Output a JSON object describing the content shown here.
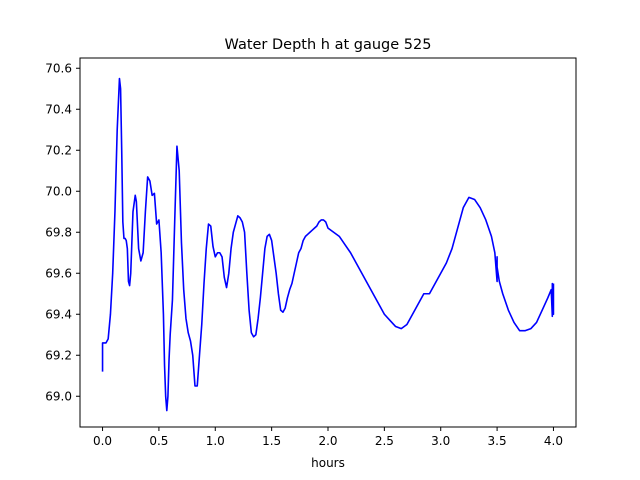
{
  "chart_data": {
    "type": "line",
    "title": "Water Depth h at gauge 525",
    "xlabel": "hours",
    "ylabel": "",
    "xlim": [
      -0.2,
      4.2
    ],
    "ylim": [
      68.85,
      70.65
    ],
    "xticks": [
      0.0,
      0.5,
      1.0,
      1.5,
      2.0,
      2.5,
      3.0,
      3.5,
      4.0
    ],
    "xtick_labels": [
      "0.0",
      "0.5",
      "1.0",
      "1.5",
      "2.0",
      "2.5",
      "3.0",
      "3.5",
      "4.0"
    ],
    "yticks": [
      69.0,
      69.2,
      69.4,
      69.6,
      69.8,
      70.0,
      70.2,
      70.4,
      70.6
    ],
    "ytick_labels": [
      "69.0",
      "69.2",
      "69.4",
      "69.6",
      "69.8",
      "70.0",
      "70.2",
      "70.4",
      "70.6"
    ],
    "grid": false,
    "series": [
      {
        "color": "#0000ff",
        "x": [
          0.0,
          0.0,
          0.01,
          0.03,
          0.05,
          0.07,
          0.09,
          0.11,
          0.13,
          0.15,
          0.16,
          0.17,
          0.18,
          0.19,
          0.2,
          0.21,
          0.22,
          0.23,
          0.24,
          0.25,
          0.27,
          0.29,
          0.3,
          0.32,
          0.34,
          0.36,
          0.38,
          0.4,
          0.42,
          0.44,
          0.46,
          0.48,
          0.5,
          0.52,
          0.54,
          0.55,
          0.56,
          0.57,
          0.58,
          0.59,
          0.6,
          0.62,
          0.64,
          0.66,
          0.68,
          0.7,
          0.72,
          0.74,
          0.76,
          0.78,
          0.8,
          0.82,
          0.84,
          0.86,
          0.88,
          0.9,
          0.92,
          0.94,
          0.96,
          0.98,
          1.0,
          1.02,
          1.04,
          1.06,
          1.08,
          1.1,
          1.12,
          1.14,
          1.16,
          1.18,
          1.2,
          1.22,
          1.24,
          1.26,
          1.28,
          1.3,
          1.32,
          1.34,
          1.36,
          1.38,
          1.4,
          1.42,
          1.44,
          1.46,
          1.48,
          1.5,
          1.52,
          1.54,
          1.56,
          1.58,
          1.6,
          1.62,
          1.64,
          1.66,
          1.68,
          1.7,
          1.72,
          1.74,
          1.76,
          1.78,
          1.8,
          1.82,
          1.84,
          1.86,
          1.88,
          1.9,
          1.92,
          1.94,
          1.96,
          1.98,
          2.0,
          2.05,
          2.1,
          2.15,
          2.2,
          2.25,
          2.3,
          2.35,
          2.4,
          2.45,
          2.5,
          2.55,
          2.6,
          2.65,
          2.7,
          2.75,
          2.8,
          2.85,
          2.9,
          2.95,
          3.0,
          3.05,
          3.1,
          3.15,
          3.2,
          3.25,
          3.3,
          3.35,
          3.4,
          3.45,
          3.48,
          3.5,
          3.5,
          3.5,
          3.52,
          3.55,
          3.6,
          3.65,
          3.7,
          3.75,
          3.8,
          3.85,
          3.9,
          3.95,
          3.98,
          3.99,
          3.99,
          4.0,
          4.0
        ],
        "y": [
          69.12,
          69.26,
          69.26,
          69.26,
          69.28,
          69.4,
          69.6,
          69.9,
          70.3,
          70.55,
          70.5,
          70.2,
          69.85,
          69.77,
          69.77,
          69.76,
          69.72,
          69.56,
          69.54,
          69.6,
          69.9,
          69.98,
          69.95,
          69.72,
          69.66,
          69.7,
          69.9,
          70.07,
          70.05,
          69.98,
          69.99,
          69.84,
          69.86,
          69.7,
          69.4,
          69.15,
          69.0,
          68.93,
          69.0,
          69.18,
          69.3,
          69.47,
          69.85,
          70.22,
          70.1,
          69.75,
          69.52,
          69.38,
          69.31,
          69.27,
          69.2,
          69.05,
          69.05,
          69.2,
          69.35,
          69.55,
          69.72,
          69.84,
          69.83,
          69.73,
          69.68,
          69.7,
          69.7,
          69.68,
          69.58,
          69.53,
          69.6,
          69.72,
          69.8,
          69.84,
          69.88,
          69.87,
          69.85,
          69.8,
          69.6,
          69.42,
          69.31,
          69.29,
          69.3,
          69.38,
          69.48,
          69.6,
          69.72,
          69.78,
          69.79,
          69.76,
          69.68,
          69.6,
          69.5,
          69.42,
          69.41,
          69.43,
          69.48,
          69.52,
          69.55,
          69.6,
          69.65,
          69.7,
          69.72,
          69.76,
          69.78,
          69.79,
          69.8,
          69.81,
          69.82,
          69.83,
          69.85,
          69.86,
          69.86,
          69.85,
          69.82,
          69.8,
          69.78,
          69.74,
          69.7,
          69.65,
          69.6,
          69.55,
          69.5,
          69.45,
          69.4,
          69.37,
          69.34,
          69.33,
          69.35,
          69.4,
          69.45,
          69.5,
          69.5,
          69.55,
          69.6,
          69.65,
          69.72,
          69.82,
          69.92,
          69.97,
          69.96,
          69.92,
          69.86,
          69.78,
          69.7,
          69.56,
          69.68,
          69.63,
          69.56,
          69.5,
          69.42,
          69.36,
          69.32,
          69.32,
          69.33,
          69.36,
          69.42,
          69.48,
          69.52,
          69.39,
          69.55,
          69.4,
          69.55
        ]
      }
    ]
  }
}
